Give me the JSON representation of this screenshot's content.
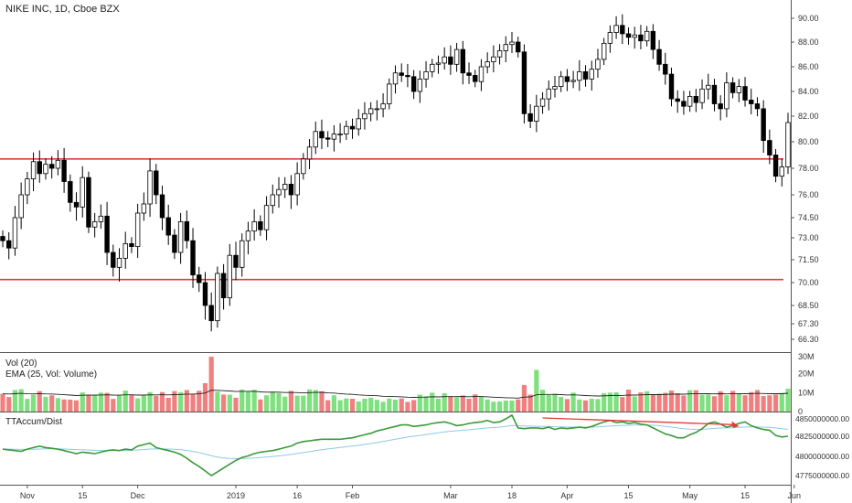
{
  "header": {
    "title": "NIKE INC, 1D, Cboe BZX"
  },
  "volume_pane": {
    "title": "Vol (20)",
    "ema_label": "EMA (25, Vol: Volume)",
    "ticks": [
      "30M",
      "20M",
      "10M",
      "0"
    ]
  },
  "tt_pane": {
    "title": "TTAccum/Dist",
    "ticks": [
      "4850000000.00",
      "4825000000.00",
      "4800000000.00",
      "4775000000.00"
    ]
  },
  "price_ticks": [
    "90.00",
    "88.00",
    "86.00",
    "84.00",
    "82.00",
    "80.00",
    "78.00",
    "76.00",
    "74.50",
    "73.00",
    "71.50",
    "70.00",
    "68.50",
    "67.30",
    "66.30"
  ],
  "x_labels": [
    "Nov",
    "15",
    "Dec",
    "2019",
    "16",
    "Feb",
    "Mar",
    "18",
    "Apr",
    "15",
    "May",
    "15",
    "Jun"
  ],
  "colors": {
    "up_volume": "#7ee07e",
    "down_volume": "#f08080",
    "support_line": "#e53935",
    "tt_line": "#3a9a3a",
    "tt_signal": "#8ecae6",
    "arrow": "#e53935",
    "candle_up_fill": "#ffffff",
    "candle_down_fill": "#000000"
  },
  "chart_data": [
    {
      "type": "candlestick",
      "title": "NIKE INC, 1D, Cboe BZX",
      "x_ticks": [
        "Nov",
        "15",
        "Dec",
        "2019",
        "16",
        "Feb",
        "Mar",
        "18",
        "Apr",
        "15",
        "May",
        "15",
        "Jun"
      ],
      "ylim": [
        65.8,
        91.0
      ],
      "horizontal_lines": [
        78.7,
        70.2
      ],
      "close": [
        72.8,
        72.3,
        74.5,
        76.0,
        77.2,
        78.5,
        77.6,
        78.3,
        78.0,
        78.6,
        77.0,
        75.5,
        75.2,
        77.3,
        73.8,
        74.2,
        74.6,
        72.0,
        71.0,
        71.6,
        72.6,
        72.4,
        74.8,
        75.4,
        77.8,
        76.0,
        74.5,
        73.2,
        72.0,
        74.2,
        72.8,
        70.5,
        70.0,
        68.5,
        67.5,
        70.6,
        69.0,
        71.8,
        71.0,
        72.8,
        73.5,
        74.2,
        73.6,
        75.3,
        76.0,
        76.4,
        76.8,
        76.0,
        77.6,
        78.7,
        79.6,
        80.8,
        80.3,
        80.2,
        80.6,
        80.6,
        81.2,
        81.0,
        81.8,
        82.2,
        82.6,
        82.6,
        83.0,
        84.6,
        85.5,
        85.3,
        85.2,
        84.0,
        85.0,
        85.6,
        86.2,
        86.3,
        86.8,
        86.2,
        87.4,
        85.5,
        85.3,
        84.8,
        86.0,
        86.4,
        86.8,
        87.3,
        87.8,
        88.0,
        87.2,
        82.2,
        81.6,
        82.8,
        83.4,
        84.2,
        84.4,
        85.2,
        84.8,
        84.9,
        85.6,
        85.0,
        85.8,
        86.6,
        87.9,
        88.8,
        89.4,
        88.7,
        88.4,
        88.6,
        88.1,
        88.9,
        87.4,
        86.2,
        85.4,
        83.4,
        83.2,
        82.8,
        83.6,
        83.1,
        84.2,
        84.5,
        83.0,
        82.6,
        84.7,
        83.9,
        84.4,
        83.3,
        83.0,
        82.6,
        80.1,
        79.0,
        77.4,
        78.1,
        81.5
      ],
      "volume": [
        9.4,
        7.7,
        11.4,
        11.8,
        6.7,
        8.9,
        10.8,
        7.8,
        8.6,
        7.1,
        6.4,
        6.3,
        5.9,
        10.1,
        9.0,
        9.0,
        10.0,
        9.9,
        6.7,
        8.5,
        11.1,
        9.0,
        7.0,
        8.6,
        10.3,
        8.3,
        10.3,
        7.3,
        10.8,
        10.2,
        11.4,
        9.4,
        11.0,
        15.0,
        29.0,
        10.5,
        9.0,
        8.9,
        7.3,
        11.6,
        10.6,
        11.5,
        6.4,
        8.6,
        10.5,
        9.8,
        7.9,
        10.9,
        8.4,
        8.4,
        11.7,
        11.4,
        10.7,
        6.0,
        8.6,
        6.0,
        6.9,
        6.8,
        5.3,
        6.8,
        7.3,
        6.2,
        5.1,
        6.9,
        6.3,
        6.9,
        5.1,
        6.1,
        9.0,
        8.1,
        10.0,
        6.8,
        9.7,
        8.1,
        7.5,
        8.5,
        6.8,
        9.1,
        7.9,
        6.4,
        5.2,
        5.3,
        5.8,
        5.8,
        6.4,
        14.0,
        9.0,
        22.0,
        11.5,
        8.7,
        9.5,
        7.7,
        6.6,
        10.0,
        6.4,
        5.9,
        6.8,
        6.6,
        9.7,
        10.0,
        10.2,
        7.7,
        11.6,
        8.0,
        10.1,
        10.7,
        8.8,
        9.4,
        9.9,
        11.1,
        9.7,
        8.5,
        11.3,
        11.3,
        8.9,
        9.0,
        8.1,
        10.7,
        8.6,
        10.9,
        9.7,
        8.6,
        10.3,
        11.4,
        8.2,
        8.6,
        9.0,
        9.8,
        12.1
      ],
      "tt_accum_dist": [
        4810000000,
        4809000000,
        4808000000,
        4807000000,
        4810000000,
        4812000000,
        4814000000,
        4812000000,
        4811000000,
        4810000000,
        4808000000,
        4806000000,
        4804000000,
        4806000000,
        4805000000,
        4804000000,
        4806000000,
        4808000000,
        4809000000,
        4808000000,
        4810000000,
        4809000000,
        4814000000,
        4816000000,
        4818000000,
        4812000000,
        4810000000,
        4808000000,
        4806000000,
        4803000000,
        4798000000,
        4792000000,
        4787000000,
        4781000000,
        4775000000,
        4780000000,
        4785000000,
        4790000000,
        4795000000,
        4799000000,
        4801000000,
        4804000000,
        4806000000,
        4807000000,
        4808000000,
        4810000000,
        4812000000,
        4814000000,
        4818000000,
        4820000000,
        4821000000,
        4822000000,
        4823000000,
        4823000000,
        4823000000,
        4823000000,
        4824000000,
        4825000000,
        4827000000,
        4829000000,
        4831000000,
        4834000000,
        4836000000,
        4838000000,
        4840000000,
        4842000000,
        4842000000,
        4840000000,
        4841000000,
        4842000000,
        4844000000,
        4845000000,
        4846000000,
        4844000000,
        4841000000,
        4842000000,
        4844000000,
        4845000000,
        4846000000,
        4848000000,
        4845000000,
        4846000000,
        4850000000,
        4855000000,
        4838000000,
        4837000000,
        4838000000,
        4838000000,
        4837000000,
        4839000000,
        4836000000,
        4838000000,
        4837000000,
        4838000000,
        4839000000,
        4838000000,
        4840000000,
        4843000000,
        4846000000,
        4848000000,
        4845000000,
        4846000000,
        4844000000,
        4845000000,
        4843000000,
        4842000000,
        4838000000,
        4834000000,
        4830000000,
        4828000000,
        4825000000,
        4825000000,
        4829000000,
        4832000000,
        4837000000,
        4844000000,
        4846000000,
        4843000000,
        4839000000,
        4841000000,
        4844000000,
        4846000000,
        4841000000,
        4838000000,
        4836000000,
        4835000000,
        4828000000,
        4826000000,
        4827000000
      ]
    }
  ]
}
